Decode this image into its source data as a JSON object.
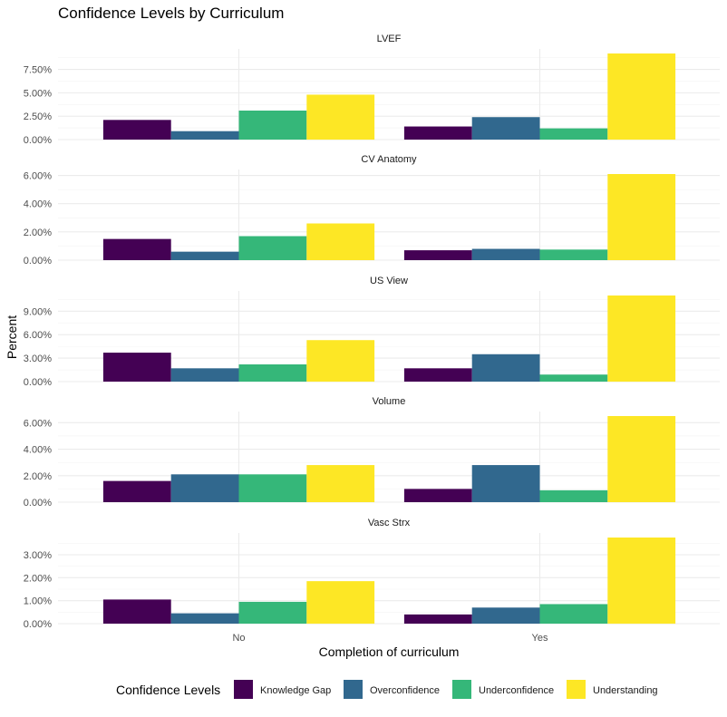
{
  "chart_data": {
    "type": "bar",
    "title": "Confidence Levels by Curriculum",
    "xlabel": "Completion of curriculum",
    "ylabel": "Percent",
    "categories": [
      "No",
      "Yes"
    ],
    "legend": {
      "title": "Confidence Levels",
      "position": "bottom",
      "entries": [
        "Knowledge Gap",
        "Overconfidence",
        "Underconfidence",
        "Understanding"
      ]
    },
    "colors": [
      "#440154",
      "#31688e",
      "#35b779",
      "#fde725"
    ],
    "panels": [
      {
        "name": "LVEF",
        "ylim": [
          0,
          9.2
        ],
        "ticks": [
          0,
          2.5,
          5,
          7.5
        ],
        "tick_labels": [
          "0.00%",
          "2.50%",
          "5.00%",
          "7.50%"
        ],
        "series": [
          {
            "name": "Knowledge Gap",
            "values": [
              2.1,
              1.4
            ]
          },
          {
            "name": "Overconfidence",
            "values": [
              0.9,
              2.4
            ]
          },
          {
            "name": "Underconfidence",
            "values": [
              3.1,
              1.2
            ]
          },
          {
            "name": "Understanding",
            "values": [
              4.8,
              9.2
            ]
          }
        ]
      },
      {
        "name": "CV Anatomy",
        "ylim": [
          0,
          6.1
        ],
        "ticks": [
          0,
          2,
          4,
          6
        ],
        "tick_labels": [
          "0.00%",
          "2.00%",
          "4.00%",
          "6.00%"
        ],
        "series": [
          {
            "name": "Knowledge Gap",
            "values": [
              1.5,
              0.7
            ]
          },
          {
            "name": "Overconfidence",
            "values": [
              0.6,
              0.8
            ]
          },
          {
            "name": "Underconfidence",
            "values": [
              1.7,
              0.75
            ]
          },
          {
            "name": "Understanding",
            "values": [
              2.6,
              6.1
            ]
          }
        ]
      },
      {
        "name": "US View",
        "ylim": [
          0,
          11
        ],
        "ticks": [
          0,
          3,
          6,
          9
        ],
        "tick_labels": [
          "0.00%",
          "3.00%",
          "6.00%",
          "9.00%"
        ],
        "series": [
          {
            "name": "Knowledge Gap",
            "values": [
              3.7,
              1.7
            ]
          },
          {
            "name": "Overconfidence",
            "values": [
              1.7,
              3.5
            ]
          },
          {
            "name": "Underconfidence",
            "values": [
              2.2,
              0.9
            ]
          },
          {
            "name": "Understanding",
            "values": [
              5.3,
              11.0
            ]
          }
        ]
      },
      {
        "name": "Volume",
        "ylim": [
          0,
          6.5
        ],
        "ticks": [
          0,
          2,
          4,
          6
        ],
        "tick_labels": [
          "0.00%",
          "2.00%",
          "4.00%",
          "6.00%"
        ],
        "series": [
          {
            "name": "Knowledge Gap",
            "values": [
              1.6,
              1.0
            ]
          },
          {
            "name": "Overconfidence",
            "values": [
              2.1,
              2.8
            ]
          },
          {
            "name": "Underconfidence",
            "values": [
              2.1,
              0.9
            ]
          },
          {
            "name": "Understanding",
            "values": [
              2.8,
              6.5
            ]
          }
        ]
      },
      {
        "name": "Vasc Strx",
        "ylim": [
          0,
          3.75
        ],
        "ticks": [
          0,
          1,
          2,
          3
        ],
        "tick_labels": [
          "0.00%",
          "1.00%",
          "2.00%",
          "3.00%"
        ],
        "series": [
          {
            "name": "Knowledge Gap",
            "values": [
              1.05,
              0.4
            ]
          },
          {
            "name": "Overconfidence",
            "values": [
              0.45,
              0.7
            ]
          },
          {
            "name": "Underconfidence",
            "values": [
              0.95,
              0.85
            ]
          },
          {
            "name": "Understanding",
            "values": [
              1.85,
              3.75
            ]
          }
        ]
      }
    ],
    "grid": true
  }
}
